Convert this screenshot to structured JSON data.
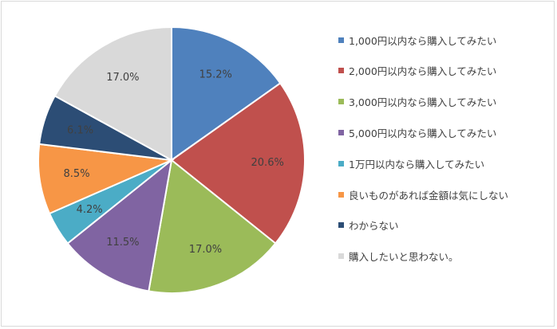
{
  "chart_data": {
    "type": "pie",
    "categories": [
      "1,000円以内なら購入してみたい",
      "2,000円以内なら購入してみたい",
      "3,000円以内なら購入してみたい",
      "5,000円以内なら購入してみたい",
      "1万円以内なら購入してみたい",
      "良いものがあれば金額は気にしない",
      "わからない",
      "購入したいと思わない。"
    ],
    "values": [
      15.2,
      20.6,
      17.0,
      11.5,
      4.2,
      8.5,
      6.1,
      17.0
    ],
    "labels": [
      "15.2%",
      "20.6%",
      "17.0%",
      "11.5%",
      "4.2%",
      "8.5%",
      "6.1%",
      "17.0%"
    ],
    "colors": [
      "#4f81bd",
      "#c0504d",
      "#9bbb59",
      "#8064a2",
      "#4bacc6",
      "#f79646",
      "#2c4d75",
      "#d9d9d9"
    ],
    "legend_position": "right",
    "start_angle": "12 o'clock",
    "direction": "clockwise"
  }
}
